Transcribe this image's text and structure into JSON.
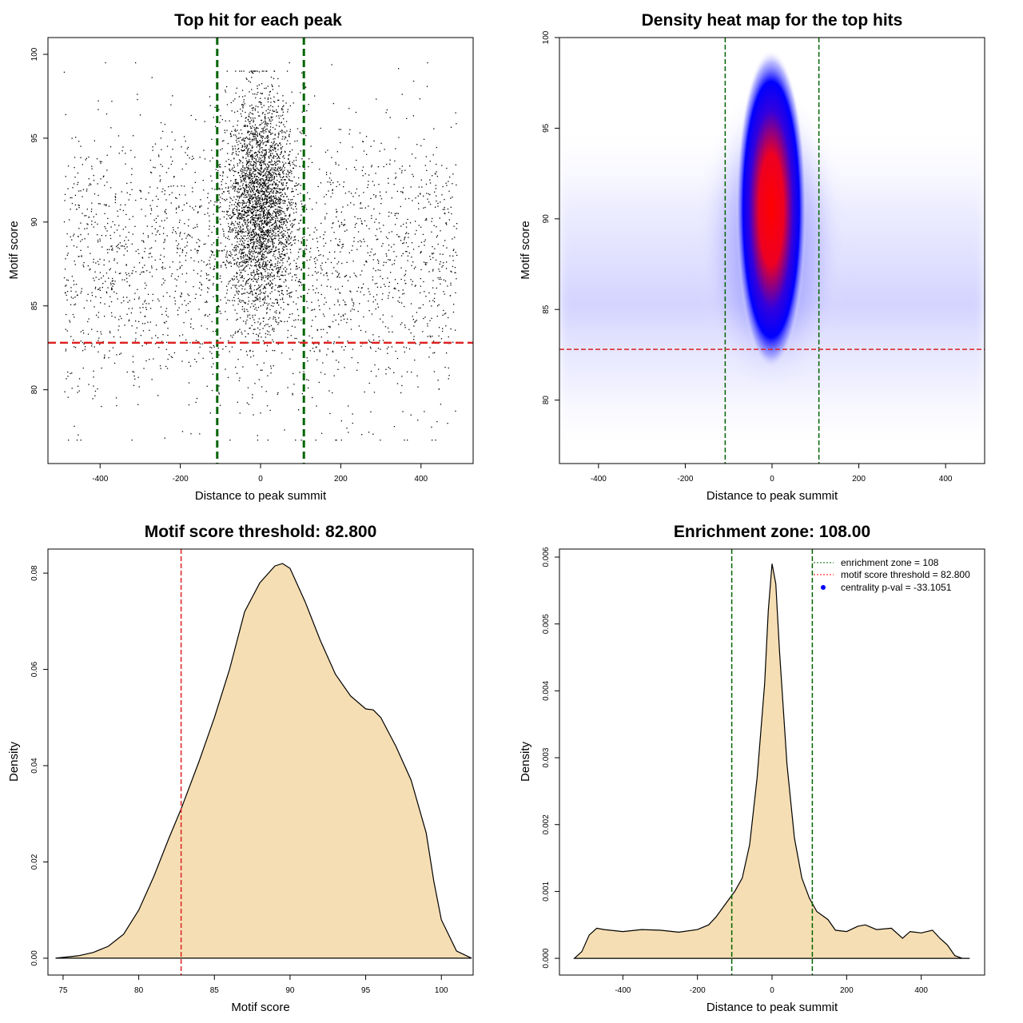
{
  "chart_data": [
    {
      "id": "scatter",
      "type": "scatter",
      "title": "Top hit for each peak",
      "xlabel": "Distance to peak summit",
      "ylabel": "Motif score",
      "xlim": [
        -530,
        530
      ],
      "ylim": [
        75.6,
        101
      ],
      "xticks": [
        -400,
        -200,
        0,
        200,
        400
      ],
      "yticks": [
        80,
        85,
        90,
        95,
        100
      ],
      "vlines": [
        -108,
        108
      ],
      "hline": 82.8,
      "points_description": "several thousand points; dense central band around x=0 (|x|<~100), scores ~77-99; background uniform over x from -490 to 490",
      "grid": false
    },
    {
      "id": "heatmap",
      "type": "heatmap",
      "title": "Density heat map for the top hits",
      "xlabel": "Distance to peak summit",
      "ylabel": "Motif score",
      "xlim": [
        -490,
        490
      ],
      "ylim": [
        76.5,
        100
      ],
      "xticks": [
        -400,
        -200,
        0,
        200,
        400
      ],
      "yticks": [
        80,
        85,
        90,
        95,
        100
      ],
      "vlines": [
        -108,
        108
      ],
      "hline": 82.8,
      "peak": {
        "x": 0,
        "y": 90.5
      },
      "colors": [
        "#ffffff",
        "#0000ff",
        "#ff0000"
      ]
    },
    {
      "id": "score-density",
      "type": "area",
      "title": "Motif score threshold: 82.800",
      "xlabel": "Motif score",
      "ylabel": "Density",
      "xlim": [
        74,
        102.1
      ],
      "ylim": [
        -0.0035,
        0.085
      ],
      "xticks": [
        75,
        80,
        85,
        90,
        95,
        100
      ],
      "yticks": [
        0.0,
        0.02,
        0.04,
        0.06,
        0.08
      ],
      "ytick_labels": [
        "0.00",
        "0.02",
        "0.04",
        "0.06",
        "0.08"
      ],
      "vline": 82.8,
      "x": [
        74.5,
        76,
        77,
        78,
        79,
        80,
        81,
        82,
        82.8,
        84,
        85,
        86,
        87,
        88,
        89,
        89.5,
        90,
        91,
        92,
        93,
        94,
        95,
        95.5,
        96,
        97,
        98,
        99,
        99.5,
        100,
        101,
        102
      ],
      "y": [
        0.0,
        0.0005,
        0.0012,
        0.0025,
        0.005,
        0.01,
        0.017,
        0.025,
        0.031,
        0.041,
        0.05,
        0.06,
        0.072,
        0.078,
        0.0815,
        0.082,
        0.081,
        0.074,
        0.066,
        0.059,
        0.0545,
        0.0518,
        0.0516,
        0.05,
        0.044,
        0.037,
        0.026,
        0.016,
        0.008,
        0.0015,
        0.0
      ]
    },
    {
      "id": "distance-density",
      "type": "area",
      "title": "Enrichment zone: 108.00",
      "xlabel": "Distance to peak summit",
      "ylabel": "Density",
      "xlim": [
        -570,
        570
      ],
      "ylim": [
        -0.00025,
        0.00612
      ],
      "xticks": [
        -400,
        -200,
        0,
        200,
        400
      ],
      "yticks": [
        0.0,
        0.001,
        0.002,
        0.003,
        0.004,
        0.005,
        0.006
      ],
      "ytick_labels": [
        "0.000",
        "0.001",
        "0.002",
        "0.003",
        "0.004",
        "0.005",
        "0.006"
      ],
      "vlines": [
        -108,
        108
      ],
      "x": [
        -530,
        -510,
        -490,
        -470,
        -450,
        -400,
        -350,
        -300,
        -250,
        -200,
        -170,
        -150,
        -120,
        -100,
        -80,
        -60,
        -40,
        -20,
        -10,
        0,
        10,
        20,
        40,
        60,
        80,
        100,
        120,
        150,
        170,
        200,
        230,
        250,
        280,
        320,
        350,
        370,
        400,
        430,
        450,
        470,
        490,
        510,
        530
      ],
      "y": [
        0.0,
        0.0001,
        0.00035,
        0.00045,
        0.00043,
        0.0004,
        0.00043,
        0.00042,
        0.00039,
        0.00043,
        0.0005,
        0.00062,
        0.00085,
        0.001,
        0.0012,
        0.0017,
        0.0027,
        0.0041,
        0.0052,
        0.0059,
        0.0056,
        0.0046,
        0.0029,
        0.0018,
        0.0012,
        0.0009,
        0.0007,
        0.00058,
        0.00042,
        0.0004,
        0.00048,
        0.0005,
        0.00043,
        0.00045,
        0.0003,
        0.0004,
        0.00038,
        0.00042,
        0.0003,
        0.0002,
        4e-05,
        0.0,
        0.0
      ]
    }
  ],
  "legend": {
    "items": [
      {
        "label": "enrichment zone = 108",
        "color": "#006400",
        "kind": "dotted-line"
      },
      {
        "label": "motif score threshold = 82.800",
        "color": "#ff0000",
        "kind": "dotted-line"
      },
      {
        "label": "centrality p-val = -33.1051",
        "color": "#0000ff",
        "kind": "point"
      }
    ]
  },
  "colors": {
    "fill": "#f5deb3",
    "enrichment": "#006400",
    "threshold": "#dd2222"
  }
}
